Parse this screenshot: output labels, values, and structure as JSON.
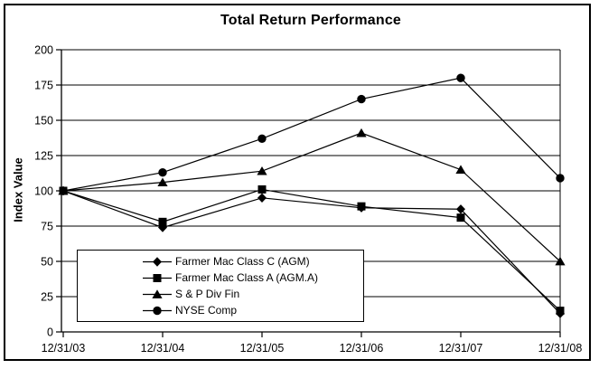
{
  "window": {
    "background": "#ffffff",
    "frame_border_color": "#000000",
    "ink_color": "#000000"
  },
  "chart_data": {
    "type": "line",
    "title": "Total Return Performance",
    "xlabel": "",
    "ylabel": "Index Value",
    "categories": [
      "12/31/03",
      "12/31/04",
      "12/31/05",
      "12/31/06",
      "12/31/07",
      "12/31/08"
    ],
    "series": [
      {
        "name": "Farmer Mac Class C (AGM)",
        "marker": "diamond",
        "values": [
          100,
          74,
          95,
          88,
          87,
          13
        ]
      },
      {
        "name": "Farmer Mac Class A (AGM.A)",
        "marker": "square",
        "values": [
          100,
          78,
          101,
          89,
          81,
          15
        ]
      },
      {
        "name": "S & P Div Fin",
        "marker": "triangle",
        "values": [
          100,
          106,
          114,
          141,
          115,
          50
        ]
      },
      {
        "name": "NYSE Comp",
        "marker": "circle",
        "values": [
          100,
          113,
          137,
          165,
          180,
          109
        ]
      }
    ],
    "ylim": [
      0,
      200
    ],
    "ytick_step": 25,
    "ytick_labels": [
      "0",
      "25",
      "50",
      "75",
      "100",
      "125",
      "150",
      "175",
      "200"
    ],
    "grid": true,
    "line_color": "#000000",
    "legend_position": "inside-bottom-left"
  }
}
